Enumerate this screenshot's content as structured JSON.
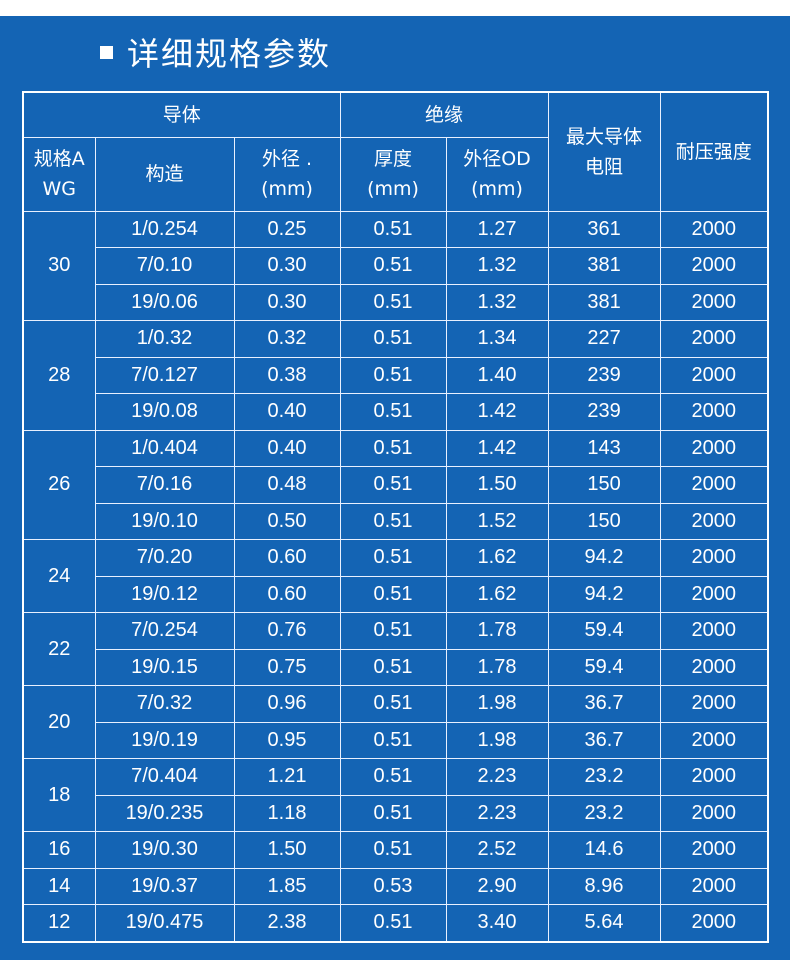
{
  "title": "详细规格参数",
  "header": {
    "conductor": "导体",
    "insulation": "绝缘",
    "max_resistance": "最大导体电阻",
    "voltage": "耐压强度",
    "awg": "规格AWG",
    "construction": "构造",
    "od": "外径 .(mm)",
    "thickness": "厚度(mm)",
    "outer_od": "外径OD(mm)"
  },
  "groups": [
    {
      "awg": "30",
      "rows": [
        [
          "1/0.254",
          "0.25",
          "0.51",
          "1.27",
          "361",
          "2000"
        ],
        [
          "7/0.10",
          "0.30",
          "0.51",
          "1.32",
          "381",
          "2000"
        ],
        [
          "19/0.06",
          "0.30",
          "0.51",
          "1.32",
          "381",
          "2000"
        ]
      ]
    },
    {
      "awg": "28",
      "rows": [
        [
          "1/0.32",
          "0.32",
          "0.51",
          "1.34",
          "227",
          "2000"
        ],
        [
          "7/0.127",
          "0.38",
          "0.51",
          "1.40",
          "239",
          "2000"
        ],
        [
          "19/0.08",
          "0.40",
          "0.51",
          "1.42",
          "239",
          "2000"
        ]
      ]
    },
    {
      "awg": "26",
      "rows": [
        [
          "1/0.404",
          "0.40",
          "0.51",
          "1.42",
          "143",
          "2000"
        ],
        [
          "7/0.16",
          "0.48",
          "0.51",
          "1.50",
          "150",
          "2000"
        ],
        [
          "19/0.10",
          "0.50",
          "0.51",
          "1.52",
          "150",
          "2000"
        ]
      ]
    },
    {
      "awg": "24",
      "rows": [
        [
          "7/0.20",
          "0.60",
          "0.51",
          "1.62",
          "94.2",
          "2000"
        ],
        [
          "19/0.12",
          "0.60",
          "0.51",
          "1.62",
          "94.2",
          "2000"
        ]
      ]
    },
    {
      "awg": "22",
      "rows": [
        [
          "7/0.254",
          "0.76",
          "0.51",
          "1.78",
          "59.4",
          "2000"
        ],
        [
          "19/0.15",
          "0.75",
          "0.51",
          "1.78",
          "59.4",
          "2000"
        ]
      ]
    },
    {
      "awg": "20",
      "rows": [
        [
          "7/0.32",
          "0.96",
          "0.51",
          "1.98",
          "36.7",
          "2000"
        ],
        [
          "19/0.19",
          "0.95",
          "0.51",
          "1.98",
          "36.7",
          "2000"
        ]
      ]
    },
    {
      "awg": "18",
      "rows": [
        [
          "7/0.404",
          "1.21",
          "0.51",
          "2.23",
          "23.2",
          "2000"
        ],
        [
          "19/0.235",
          "1.18",
          "0.51",
          "2.23",
          "23.2",
          "2000"
        ]
      ]
    },
    {
      "awg": "16",
      "rows": [
        [
          "19/0.30",
          "1.50",
          "0.51",
          "2.52",
          "14.6",
          "2000"
        ]
      ]
    },
    {
      "awg": "14",
      "rows": [
        [
          "19/0.37",
          "1.85",
          "0.53",
          "2.90",
          "8.96",
          "2000"
        ]
      ]
    },
    {
      "awg": "12",
      "rows": [
        [
          "19/0.475",
          "2.38",
          "0.51",
          "3.40",
          "5.64",
          "2000"
        ]
      ]
    }
  ]
}
